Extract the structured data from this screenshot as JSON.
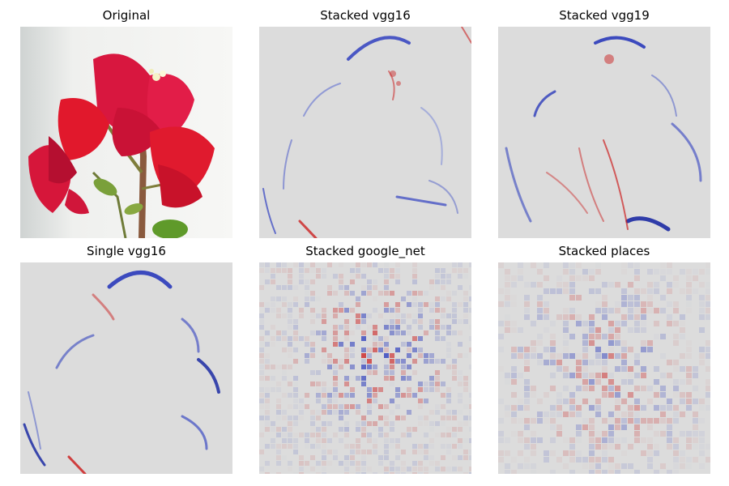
{
  "figure": {
    "panels": [
      {
        "title": "Original"
      },
      {
        "title": "Stacked vgg16"
      },
      {
        "title": "Stacked vgg19"
      },
      {
        "title": "Single vgg16"
      },
      {
        "title": "Stacked google_net"
      },
      {
        "title": "Stacked places"
      }
    ]
  },
  "colors": {
    "saliency_positive": "#cc2222",
    "saliency_negative": "#2233bb",
    "saliency_neutral": "#dcdcdc",
    "flower_red": "#e0193a",
    "background_white": "#f4f4f2"
  }
}
